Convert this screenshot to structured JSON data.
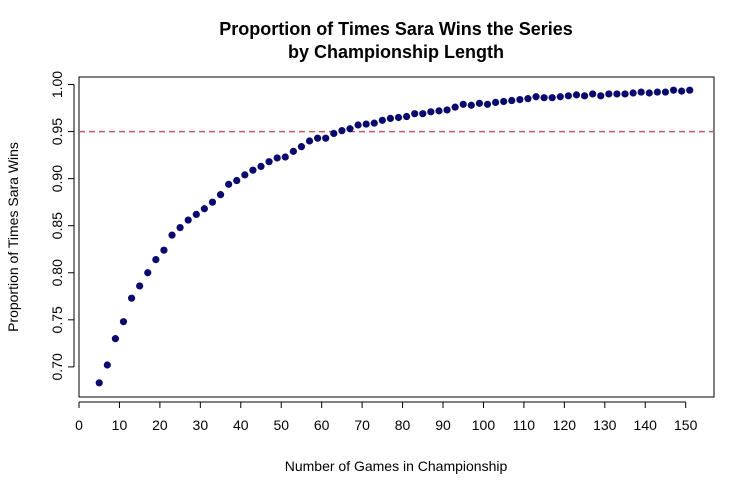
{
  "chart_data": {
    "type": "scatter",
    "title": "Proportion of Times Sara Wins the Series",
    "subtitle": "by Championship Length",
    "xlabel": "Number of Games in Championship",
    "ylabel": "Proportion of Times Sara Wins",
    "xlim": [
      0,
      157
    ],
    "ylim": [
      0.668,
      1.008
    ],
    "x_ticks": [
      "0",
      "10",
      "20",
      "30",
      "40",
      "50",
      "60",
      "70",
      "80",
      "90",
      "100",
      "110",
      "120",
      "130",
      "140",
      "150"
    ],
    "y_ticks": [
      "0.70",
      "0.75",
      "0.80",
      "0.85",
      "0.90",
      "0.95",
      "1.00"
    ],
    "reference_line": {
      "y": 0.95,
      "style": "dashed",
      "color": "#b85c70"
    },
    "point_color": "#0a0a6e",
    "grid": false,
    "x": [
      5,
      7,
      9,
      11,
      13,
      15,
      17,
      19,
      21,
      23,
      25,
      27,
      29,
      31,
      33,
      35,
      37,
      39,
      41,
      43,
      45,
      47,
      49,
      51,
      53,
      55,
      57,
      59,
      61,
      63,
      65,
      67,
      69,
      71,
      73,
      75,
      77,
      79,
      81,
      83,
      85,
      87,
      89,
      91,
      93,
      95,
      97,
      99,
      101,
      103,
      105,
      107,
      109,
      111,
      113,
      115,
      117,
      119,
      121,
      123,
      125,
      127,
      129,
      131,
      133,
      135,
      137,
      139,
      141,
      143,
      145,
      147,
      149,
      151
    ],
    "y": [
      0.683,
      0.702,
      0.73,
      0.748,
      0.773,
      0.786,
      0.8,
      0.814,
      0.824,
      0.84,
      0.848,
      0.856,
      0.862,
      0.868,
      0.875,
      0.883,
      0.894,
      0.898,
      0.904,
      0.909,
      0.913,
      0.918,
      0.922,
      0.923,
      0.929,
      0.934,
      0.94,
      0.943,
      0.943,
      0.948,
      0.951,
      0.953,
      0.957,
      0.958,
      0.959,
      0.962,
      0.964,
      0.965,
      0.966,
      0.969,
      0.969,
      0.971,
      0.972,
      0.973,
      0.976,
      0.979,
      0.978,
      0.98,
      0.979,
      0.981,
      0.982,
      0.983,
      0.984,
      0.985,
      0.987,
      0.986,
      0.986,
      0.987,
      0.988,
      0.989,
      0.988,
      0.99,
      0.988,
      0.99,
      0.99,
      0.99,
      0.991,
      0.992,
      0.991,
      0.992,
      0.992,
      0.994,
      0.993,
      0.994
    ]
  }
}
